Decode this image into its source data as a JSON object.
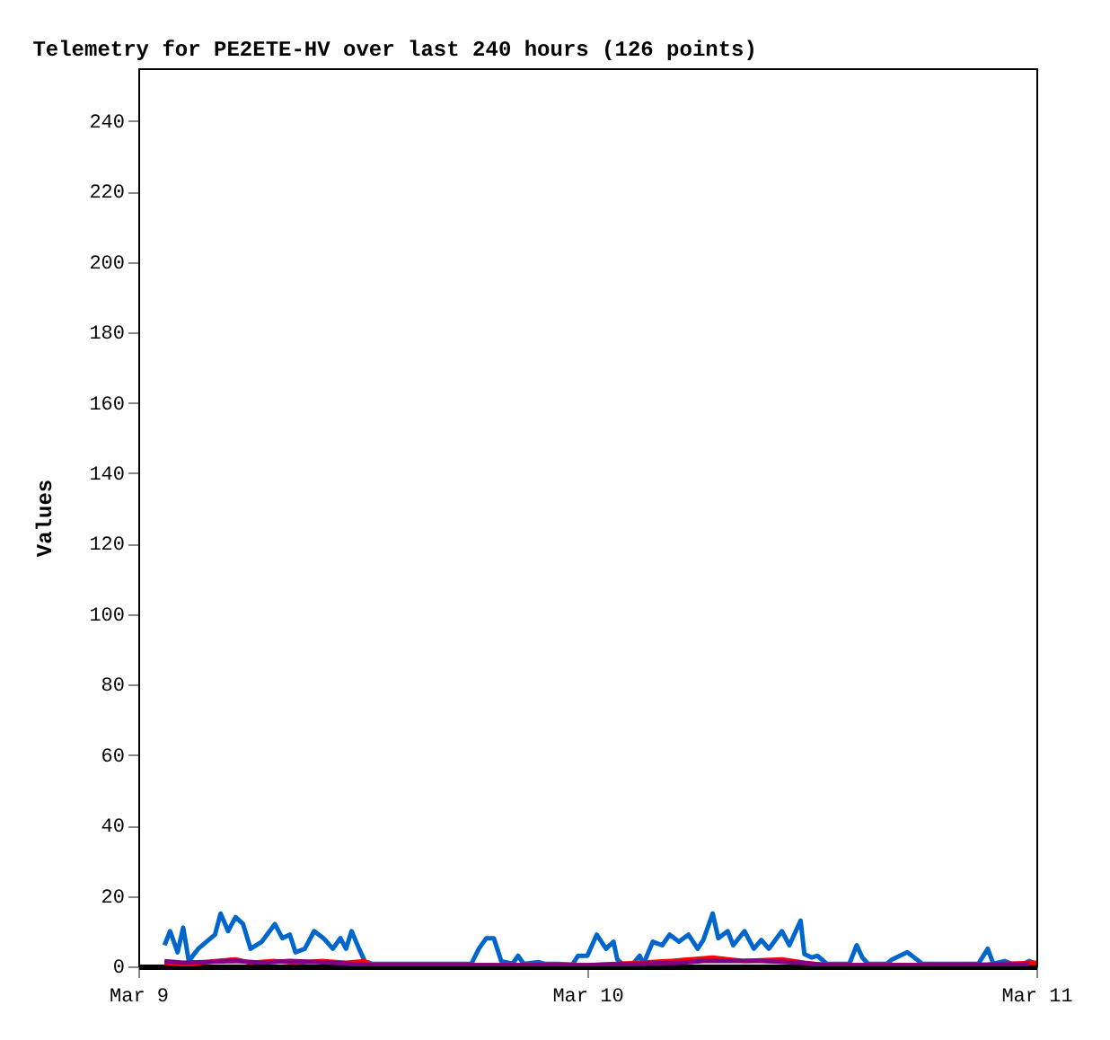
{
  "chart_data": {
    "type": "line",
    "title": "Telemetry for PE2ETE-HV over last 240 hours (126 points)",
    "ylabel": "Values",
    "xlim": [
      "--03-09",
      "--03-11"
    ],
    "xticks": [
      {
        "value": "--03-09",
        "label": "Mar 9"
      },
      {
        "value": "--03-10",
        "label": "Mar 10"
      },
      {
        "value": "--03-11",
        "label": "Mar 11"
      }
    ],
    "ylim": [
      0,
      255
    ],
    "yticks": [
      0,
      20,
      40,
      60,
      80,
      100,
      120,
      140,
      160,
      180,
      200,
      220,
      240
    ],
    "grid": false,
    "marker": "none",
    "line_style": "solid",
    "series": [
      {
        "color": "#0066cc",
        "x": [
          "--03-09T01:24",
          "--03-09T01:42",
          "--03-09T02:06",
          "--03-09T02:24",
          "--03-09T02:42",
          "--03-09T03:12",
          "--03-09T04:06",
          "--03-09T04:24",
          "--03-09T04:48",
          "--03-09T05:12",
          "--03-09T05:36",
          "--03-09T06:00",
          "--03-09T06:36",
          "--03-09T07:18",
          "--03-09T07:42",
          "--03-09T08:06",
          "--03-09T08:24",
          "--03-09T08:54",
          "--03-09T09:24",
          "--03-09T09:54",
          "--03-09T10:24",
          "--03-09T10:48",
          "--03-09T11:06",
          "--03-09T11:24",
          "--03-09T11:48",
          "--03-09T12:06",
          "--03-09T12:30",
          "--03-09T17:48",
          "--03-09T18:12",
          "--03-09T18:36",
          "--03-09T19:00",
          "--03-09T19:24",
          "--03-09T20:00",
          "--03-09T20:18",
          "--03-09T20:36",
          "--03-09T21:24",
          "--03-09T21:42",
          "--03-09T22:24",
          "--03-09T23:12",
          "--03-09T23:30",
          "--03-10T00:00",
          "--03-10T00:30",
          "--03-10T01:00",
          "--03-10T01:24",
          "--03-10T01:36",
          "--03-10T01:54",
          "--03-10T02:24",
          "--03-10T02:48",
          "--03-10T03:00",
          "--03-10T03:30",
          "--03-10T04:00",
          "--03-10T04:24",
          "--03-10T04:54",
          "--03-10T05:24",
          "--03-10T05:54",
          "--03-10T06:12",
          "--03-10T06:42",
          "--03-10T07:00",
          "--03-10T07:30",
          "--03-10T07:48",
          "--03-10T08:24",
          "--03-10T08:54",
          "--03-10T09:18",
          "--03-10T09:42",
          "--03-10T10:24",
          "--03-10T10:48",
          "--03-10T11:24",
          "--03-10T11:36",
          "--03-10T12:00",
          "--03-10T12:18",
          "--03-10T12:48",
          "--03-10T14:00",
          "--03-10T14:24",
          "--03-10T14:42",
          "--03-10T15:00",
          "--03-10T16:00",
          "--03-10T16:18",
          "--03-10T17:06",
          "--03-10T17:36",
          "--03-10T17:54",
          "--03-10T19:12",
          "--03-10T20:54",
          "--03-10T21:24",
          "--03-10T21:42",
          "--03-10T22:18",
          "--03-10T22:42",
          "--03-10T23:18",
          "--03-10T23:36",
          "--03-11T00:00"
        ],
        "values": [
          6,
          10,
          4,
          11,
          1.5,
          5,
          9,
          15,
          10,
          14,
          12,
          5,
          7,
          12,
          8,
          9,
          4,
          5,
          10,
          8,
          5,
          8,
          5,
          10,
          5,
          1.5,
          0.7,
          0.7,
          5,
          8,
          8,
          1.5,
          0.7,
          3,
          0.7,
          1.2,
          0.7,
          0.7,
          0.5,
          3,
          3,
          9,
          5,
          7,
          2,
          0.5,
          0.5,
          3,
          0.7,
          7,
          6,
          9,
          7,
          9,
          5,
          7.5,
          15,
          8,
          10,
          6,
          10,
          5,
          7.5,
          5,
          10,
          6,
          13,
          3.5,
          2.5,
          3,
          0.7,
          0.7,
          6,
          2.5,
          0.7,
          0.7,
          2,
          4,
          2,
          0.7,
          0.7,
          0.7,
          5,
          0.7,
          1.5,
          0.7,
          0.7,
          1.5,
          0.7
        ]
      },
      {
        "color": "#ff0000",
        "x": [
          "--03-09T01:24",
          "--03-09T02:42",
          "--03-09T04:06",
          "--03-09T05:12",
          "--03-09T06:00",
          "--03-09T07:18",
          "--03-09T08:24",
          "--03-09T09:54",
          "--03-09T11:06",
          "--03-09T12:06",
          "--03-09T12:30",
          "--03-09T17:48",
          "--03-10T00:00",
          "--03-10T02:48",
          "--03-10T04:24",
          "--03-10T06:42",
          "--03-10T08:24",
          "--03-10T10:24",
          "--03-10T11:36",
          "--03-10T12:48",
          "--03-10T21:24",
          "--03-11T00:00"
        ],
        "values": [
          1,
          0.5,
          1.5,
          2,
          1,
          1.5,
          1,
          1.5,
          1,
          1.5,
          0.3,
          0.3,
          0.3,
          1,
          1.5,
          2.5,
          1.5,
          2,
          1,
          0.3,
          0.5,
          1
        ]
      },
      {
        "color": "#800080",
        "x": [
          "--03-09T01:24",
          "--03-09T02:24",
          "--03-09T05:12",
          "--03-09T06:36",
          "--03-09T08:06",
          "--03-09T10:24",
          "--03-09T12:30",
          "--03-10T00:00",
          "--03-10T04:54",
          "--03-10T06:12",
          "--03-10T09:18",
          "--03-10T11:24",
          "--03-10T12:48",
          "--03-10T16:18",
          "--03-10T23:36"
        ],
        "values": [
          1.5,
          1,
          1.5,
          1,
          1.5,
          1,
          0.3,
          0.3,
          1,
          1.5,
          1.5,
          1,
          0.3,
          0.3,
          0.5
        ]
      }
    ]
  }
}
